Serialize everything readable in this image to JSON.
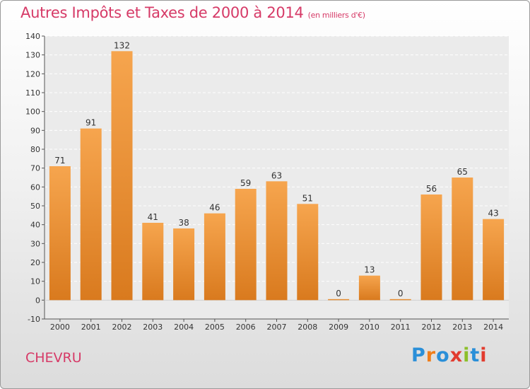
{
  "header": {
    "title": "Autres Impôts et Taxes de 2000 à 2014",
    "unit": "(en milliers d'€)"
  },
  "footer": {
    "place": "CHEVRU",
    "logo": [
      "P",
      "r",
      "o",
      "x",
      "i",
      "t",
      "i"
    ],
    "logo_colors": [
      "#2a8fd8",
      "#ef7d1a",
      "#2a8fd8",
      "#e23b2e",
      "#8cbf2a",
      "#2a8fd8",
      "#e23b2e"
    ]
  },
  "colors": {
    "title": "#d63a67",
    "bar_light": "#f6a54e",
    "bar_dark": "#d97a1e"
  },
  "chart_data": {
    "type": "bar",
    "categories": [
      "2000",
      "2001",
      "2002",
      "2003",
      "2004",
      "2005",
      "2006",
      "2007",
      "2008",
      "2009",
      "2010",
      "2011",
      "2012",
      "2013",
      "2014"
    ],
    "values": [
      71,
      91,
      132,
      41,
      38,
      46,
      59,
      63,
      51,
      0,
      13,
      0,
      56,
      65,
      43
    ],
    "ylim": [
      -10,
      140
    ],
    "yticks": [
      -10,
      0,
      10,
      20,
      30,
      40,
      50,
      60,
      70,
      80,
      90,
      100,
      110,
      120,
      130,
      140
    ],
    "grid": true
  }
}
